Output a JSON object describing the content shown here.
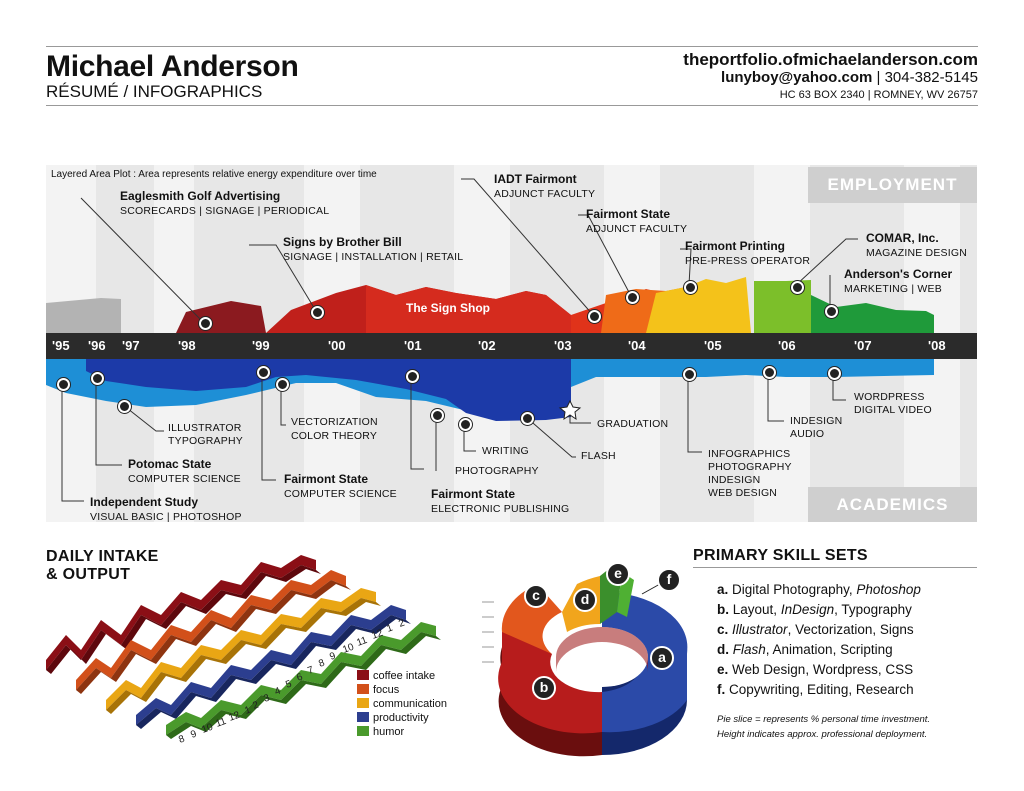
{
  "header": {
    "name": "Michael Anderson",
    "subtitle": "RÉSUMÉ / INFOGRAPHICS",
    "website": "theportfolio.ofmichaelanderson.com",
    "email": "lunyboy@yahoo.com",
    "phone_sep": " | 304-382-5145",
    "address": "HC 63 BOX 2340 | ROMNEY, WV 26757"
  },
  "timeline": {
    "caption": "Layered Area Plot : Area represents relative energy expenditure over time",
    "employment_tag": "EMPLOYMENT",
    "academics_tag": "ACADEMICS",
    "years": [
      "'95",
      "'96",
      "'97",
      "'98",
      "'99",
      "'00",
      "'01",
      "'02",
      "'03",
      "'04",
      "'05",
      "'06",
      "'07",
      "'08"
    ],
    "sign_shop": "The Sign Shop",
    "employment": [
      {
        "title": "Eaglesmith Golf Advertising",
        "detail": "SCORECARDS | SIGNAGE | PERIODICAL"
      },
      {
        "title": "Signs by Brother Bill",
        "detail": "SIGNAGE | INSTALLATION | RETAIL"
      },
      {
        "title": "IADT Fairmont",
        "detail": "ADJUNCT FACULTY"
      },
      {
        "title": "Fairmont State",
        "detail": "ADJUNCT FACULTY"
      },
      {
        "title": "Fairmont Printing",
        "detail": "PRE-PRESS OPERATOR"
      },
      {
        "title": "COMAR, Inc.",
        "detail": "MAGAZINE DESIGN"
      },
      {
        "title": "Anderson's Corner",
        "detail": "MARKETING | WEB"
      }
    ],
    "academics": [
      {
        "title": "Independent Study",
        "detail": "VISUAL BASIC | PHOTOSHOP"
      },
      {
        "title": "Potomac State",
        "detail": "COMPUTER SCIENCE"
      },
      {
        "title": "Fairmont State",
        "detail": "COMPUTER SCIENCE"
      },
      {
        "title": "Fairmont State",
        "detail": "ELECTRONIC PUBLISHING"
      }
    ],
    "notes": {
      "illustrator": [
        "ILLUSTRATOR",
        "TYPOGRAPHY"
      ],
      "vectorization": [
        "VECTORIZATION",
        "COLOR THEORY"
      ],
      "writing": "WRITING",
      "photography": "PHOTOGRAPHY",
      "flash": "FLASH",
      "graduation": "GRADUATION",
      "infographics": [
        "INFOGRAPHICS",
        "PHOTOGRAPHY",
        "INDESIGN",
        "WEB DESIGN"
      ],
      "indesign": [
        "INDESIGN",
        "AUDIO"
      ],
      "wordpress": [
        "WORDPRESS",
        "DIGITAL VIDEO"
      ]
    }
  },
  "daily": {
    "title_line1": "DAILY INTAKE",
    "title_line2": "& OUTPUT",
    "legend": [
      {
        "label": "coffee intake",
        "color": "#8b0f16"
      },
      {
        "label": "focus",
        "color": "#d2501a"
      },
      {
        "label": "communication",
        "color": "#e9a614"
      },
      {
        "label": "productivity",
        "color": "#2c3e8f"
      },
      {
        "label": "humor",
        "color": "#4a9a2c"
      }
    ],
    "hour_labels": [
      "8",
      "9",
      "10",
      "11",
      "12",
      "1",
      "2",
      "3",
      "4",
      "5",
      "6",
      "7",
      "8",
      "9",
      "10",
      "11",
      "12",
      "1",
      "2"
    ]
  },
  "skills": {
    "title": "PRIMARY SKILL SETS",
    "items": [
      {
        "letter": "a.",
        "text": "Digital Photography, ",
        "em": "Photoshop",
        "rest": ""
      },
      {
        "letter": "b.",
        "text": "Layout, ",
        "em": "InDesign",
        "rest": ", Typography"
      },
      {
        "letter": "c.",
        "text": "",
        "em": "Illustrator",
        "rest": ", Vectorization, Signs"
      },
      {
        "letter": "d.",
        "text": "",
        "em": "Flash",
        "rest": ", Animation, Scripting"
      },
      {
        "letter": "e.",
        "text": "Web Design, Wordpress, CSS",
        "em": "",
        "rest": ""
      },
      {
        "letter": "f.",
        "text": "Copywriting, Editing, Research",
        "em": "",
        "rest": ""
      }
    ],
    "pie_letters": [
      "a",
      "b",
      "c",
      "d",
      "e",
      "f"
    ],
    "foot1": "Pie slice = represents % personal time investment.",
    "foot2": "Height indicates approx. professional deployment."
  },
  "chart_data": [
    {
      "type": "area",
      "title": "",
      "x": [
        "'95",
        "'96",
        "'97",
        "'98",
        "'99",
        "'00",
        "'01",
        "'02",
        "'03",
        "'04",
        "'05",
        "'06",
        "'07",
        "'08"
      ],
      "series": [
        {
          "name": "Eaglesmith Golf Advertising",
          "color": "#8b1a1f"
        },
        {
          "name": "Signs by Brother Bill",
          "color": "#c0201b"
        },
        {
          "name": "The Sign Shop",
          "color": "#d52b1e"
        },
        {
          "name": "Fairmont Printing",
          "color": "#f4c21a"
        },
        {
          "name": "COMAR, Inc.",
          "color": "#7cbf2a"
        },
        {
          "name": "Anderson's Corner",
          "color": "#1f9a3a"
        }
      ]
    },
    {
      "type": "pie",
      "categories": [
        "a",
        "b",
        "c",
        "d",
        "e",
        "f"
      ],
      "colors": [
        "#2b4aa8",
        "#b71c1c",
        "#e2571d",
        "#f1a51c",
        "#3b8f2c",
        "#4fb033"
      ]
    }
  ]
}
